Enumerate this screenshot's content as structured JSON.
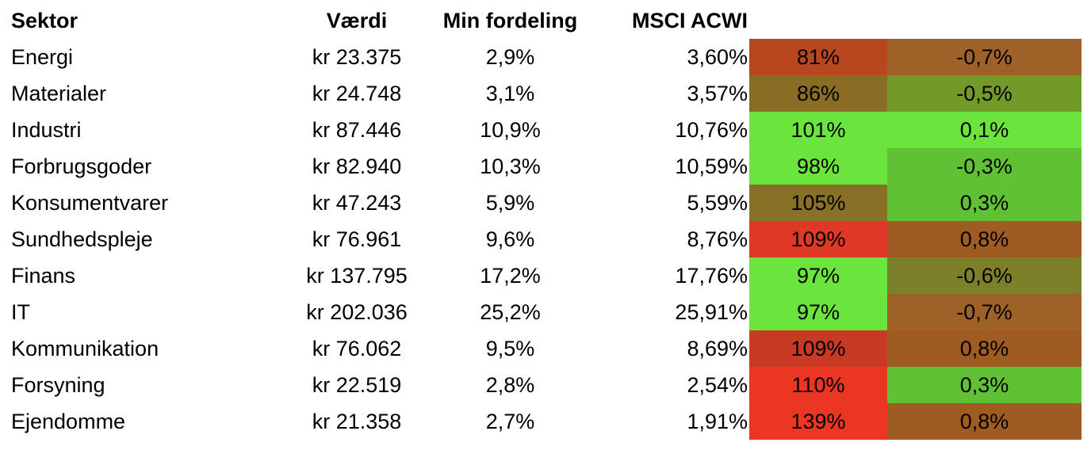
{
  "headers": {
    "sektor": "Sektor",
    "vaerdi": "Værdi",
    "min_fordeling": "Min fordeling",
    "msci_acwi": "MSCI ACWI"
  },
  "rows": [
    {
      "sektor": "Energi",
      "vaerdi": "kr 23.375",
      "min": "2,9%",
      "msci": "3,60%",
      "ratio": "81%",
      "ratio_color": "#b8471f",
      "diff": "-0,7%",
      "diff_color": "#9e6128"
    },
    {
      "sektor": "Materialer",
      "vaerdi": "kr 24.748",
      "min": "3,1%",
      "msci": "3,57%",
      "ratio": "86%",
      "ratio_color": "#8b6c25",
      "diff": "-0,5%",
      "diff_color": "#739929"
    },
    {
      "sektor": "Industri",
      "vaerdi": "kr 87.446",
      "min": "10,9%",
      "msci": "10,76%",
      "ratio": "101%",
      "ratio_color": "#6be43e",
      "diff": "0,1%",
      "diff_color": "#6be43e"
    },
    {
      "sektor": "Forbrugsgoder",
      "vaerdi": "kr 82.940",
      "min": "10,3%",
      "msci": "10,59%",
      "ratio": "98%",
      "ratio_color": "#6be43e",
      "diff": "-0,3%",
      "diff_color": "#5fc133"
    },
    {
      "sektor": "Konsumentvarer",
      "vaerdi": "kr 47.243",
      "min": "5,9%",
      "msci": "5,59%",
      "ratio": "105%",
      "ratio_color": "#887127",
      "diff": "0,3%",
      "diff_color": "#5fc133"
    },
    {
      "sektor": "Sundhedspleje",
      "vaerdi": "kr 76.961",
      "min": "9,6%",
      "msci": "8,76%",
      "ratio": "109%",
      "ratio_color": "#e03826",
      "diff": "0,8%",
      "diff_color": "#9e5b22"
    },
    {
      "sektor": "Finans",
      "vaerdi": "kr 137.795",
      "min": "17,2%",
      "msci": "17,76%",
      "ratio": "97%",
      "ratio_color": "#6be43e",
      "diff": "-0,6%",
      "diff_color": "#7b8029"
    },
    {
      "sektor": "IT",
      "vaerdi": "kr 202.036",
      "min": "25,2%",
      "msci": "25,91%",
      "ratio": "97%",
      "ratio_color": "#6be43e",
      "diff": "-0,7%",
      "diff_color": "#9e6128"
    },
    {
      "sektor": "Kommunikation",
      "vaerdi": "kr 76.062",
      "min": "9,5%",
      "msci": "8,69%",
      "ratio": "109%",
      "ratio_color": "#c93a24",
      "diff": "0,8%",
      "diff_color": "#9e5b22"
    },
    {
      "sektor": "Forsyning",
      "vaerdi": "kr 22.519",
      "min": "2,8%",
      "msci": "2,54%",
      "ratio": "110%",
      "ratio_color": "#ea3623",
      "diff": "0,3%",
      "diff_color": "#5fc133"
    },
    {
      "sektor": "Ejendomme",
      "vaerdi": "kr 21.358",
      "min": "2,7%",
      "msci": "1,91%",
      "ratio": "139%",
      "ratio_color": "#ea3623",
      "diff": "0,8%",
      "diff_color": "#9e5b22"
    }
  ]
}
